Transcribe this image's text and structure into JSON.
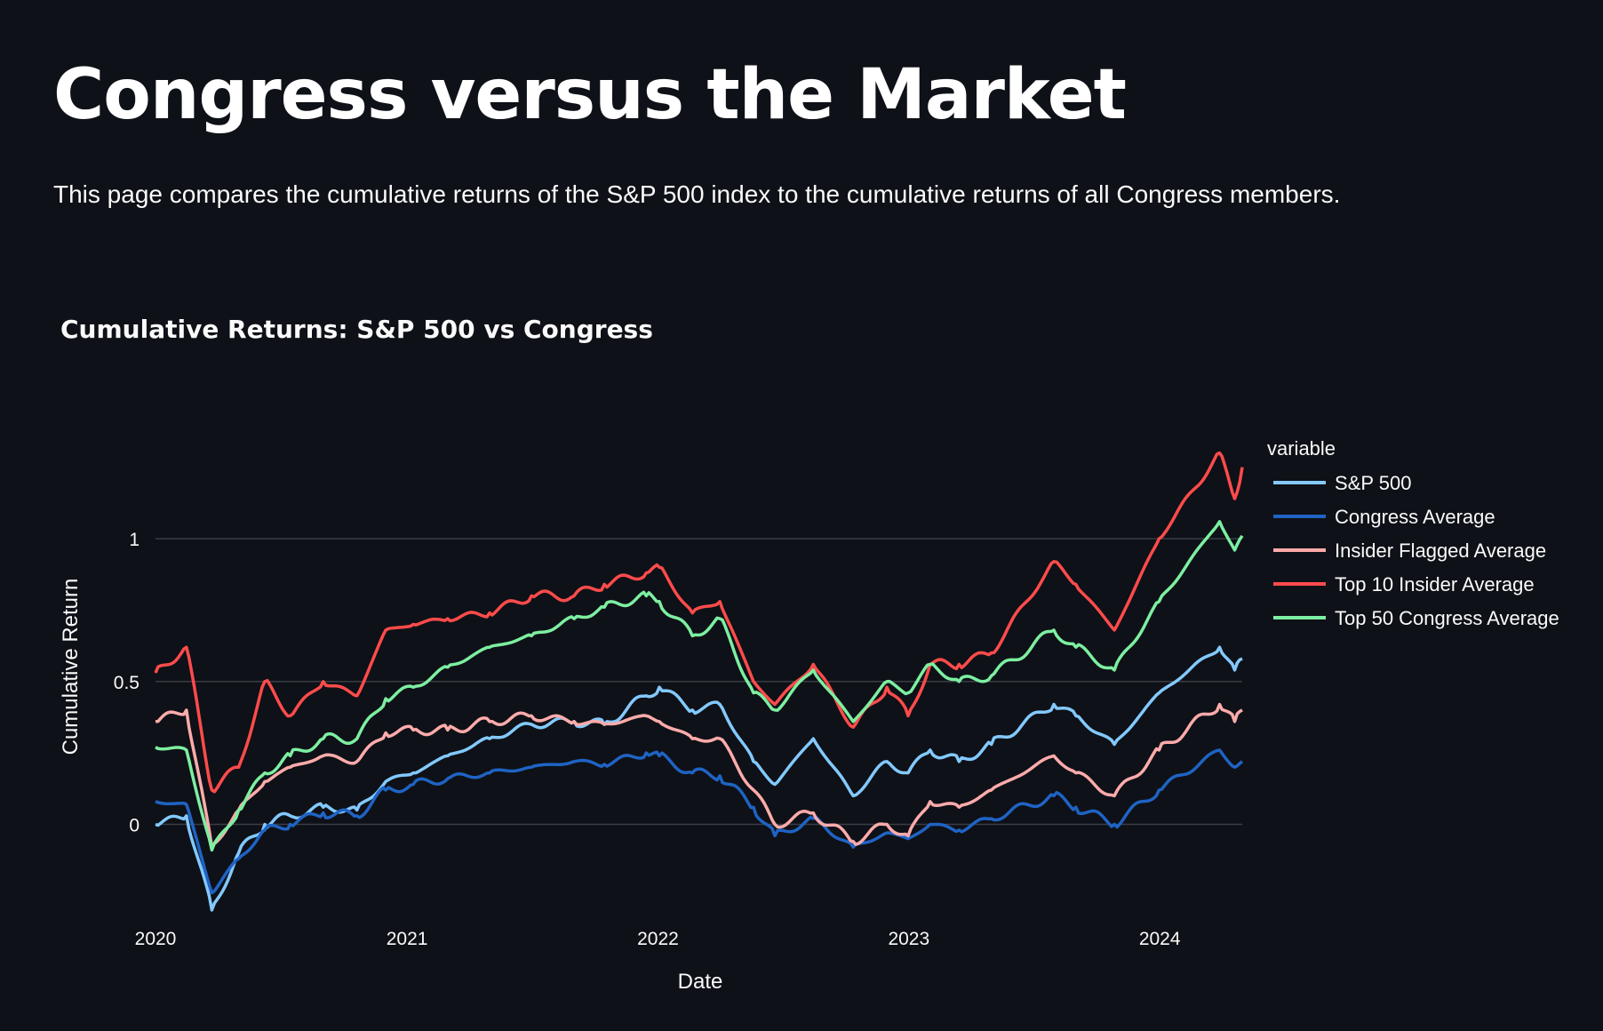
{
  "page": {
    "title": "Congress versus the Market",
    "description": "This page compares the cumulative returns of the S&P 500 index to the cumulative returns of all Congress members."
  },
  "colors": {
    "background": "#0e1117",
    "grid": "#3a3d44",
    "text": "#fafafa"
  },
  "chart_data": {
    "type": "line",
    "title": "Cumulative Returns: S&P 500 vs Congress",
    "xlabel": "Date",
    "ylabel": "Cumulative Return",
    "x_axis_type": "date",
    "xlim": [
      "2020-01-01",
      "2024-04-30"
    ],
    "ylim": [
      -0.35,
      1.33
    ],
    "x_ticks": [
      {
        "value": "2020-01-01",
        "label": "2020"
      },
      {
        "value": "2021-01-01",
        "label": "2021"
      },
      {
        "value": "2022-01-01",
        "label": "2022"
      },
      {
        "value": "2023-01-01",
        "label": "2023"
      },
      {
        "value": "2024-01-01",
        "label": "2024"
      }
    ],
    "y_ticks": [
      {
        "value": 0,
        "label": "0"
      },
      {
        "value": 0.5,
        "label": "0.5"
      },
      {
        "value": 1,
        "label": "1"
      }
    ],
    "grid": true,
    "legend": {
      "title": "variable",
      "position": "right"
    },
    "series": [
      {
        "name": "S&P 500",
        "color": "#83c9ff",
        "points": [
          [
            "2020-01-01",
            0.0
          ],
          [
            "2020-02-15",
            0.03
          ],
          [
            "2020-03-23",
            -0.3
          ],
          [
            "2020-05-01",
            -0.1
          ],
          [
            "2020-06-08",
            0.0
          ],
          [
            "2020-07-15",
            0.03
          ],
          [
            "2020-09-01",
            0.06
          ],
          [
            "2020-10-20",
            0.05
          ],
          [
            "2020-12-01",
            0.15
          ],
          [
            "2021-01-10",
            0.18
          ],
          [
            "2021-03-01",
            0.24
          ],
          [
            "2021-05-01",
            0.3
          ],
          [
            "2021-07-01",
            0.35
          ],
          [
            "2021-09-01",
            0.36
          ],
          [
            "2021-10-15",
            0.35
          ],
          [
            "2021-12-15",
            0.45
          ],
          [
            "2022-01-03",
            0.48
          ],
          [
            "2022-02-20",
            0.4
          ],
          [
            "2022-04-01",
            0.42
          ],
          [
            "2022-05-20",
            0.22
          ],
          [
            "2022-06-20",
            0.14
          ],
          [
            "2022-08-15",
            0.3
          ],
          [
            "2022-10-12",
            0.1
          ],
          [
            "2022-11-30",
            0.22
          ],
          [
            "2022-12-31",
            0.18
          ],
          [
            "2023-02-01",
            0.26
          ],
          [
            "2023-03-15",
            0.22
          ],
          [
            "2023-05-01",
            0.28
          ],
          [
            "2023-07-31",
            0.42
          ],
          [
            "2023-09-01",
            0.38
          ],
          [
            "2023-10-27",
            0.28
          ],
          [
            "2023-12-31",
            0.46
          ],
          [
            "2024-03-28",
            0.62
          ],
          [
            "2024-04-19",
            0.54
          ],
          [
            "2024-04-30",
            0.58
          ]
        ]
      },
      {
        "name": "Congress Average",
        "color": "#1f63c4",
        "points": [
          [
            "2020-01-01",
            0.08
          ],
          [
            "2020-02-15",
            0.07
          ],
          [
            "2020-03-23",
            -0.24
          ],
          [
            "2020-05-01",
            -0.12
          ],
          [
            "2020-06-08",
            -0.02
          ],
          [
            "2020-07-15",
            0.0
          ],
          [
            "2020-09-01",
            0.04
          ],
          [
            "2020-10-20",
            0.03
          ],
          [
            "2020-12-01",
            0.12
          ],
          [
            "2021-01-10",
            0.14
          ],
          [
            "2021-03-01",
            0.16
          ],
          [
            "2021-05-01",
            0.18
          ],
          [
            "2021-07-01",
            0.2
          ],
          [
            "2021-09-01",
            0.22
          ],
          [
            "2021-10-15",
            0.21
          ],
          [
            "2021-12-15",
            0.25
          ],
          [
            "2022-01-03",
            0.24
          ],
          [
            "2022-02-20",
            0.18
          ],
          [
            "2022-04-01",
            0.17
          ],
          [
            "2022-05-20",
            0.06
          ],
          [
            "2022-06-20",
            -0.04
          ],
          [
            "2022-08-15",
            0.02
          ],
          [
            "2022-10-12",
            -0.08
          ],
          [
            "2022-11-30",
            -0.03
          ],
          [
            "2022-12-31",
            -0.05
          ],
          [
            "2023-02-01",
            0.0
          ],
          [
            "2023-03-15",
            -0.02
          ],
          [
            "2023-05-01",
            0.02
          ],
          [
            "2023-07-31",
            0.1
          ],
          [
            "2023-09-01",
            0.06
          ],
          [
            "2023-10-27",
            0.0
          ],
          [
            "2023-12-31",
            0.12
          ],
          [
            "2024-03-28",
            0.26
          ],
          [
            "2024-04-19",
            0.2
          ],
          [
            "2024-04-30",
            0.22
          ]
        ]
      },
      {
        "name": "Insider Flagged Average",
        "color": "#ffabab",
        "points": [
          [
            "2020-01-01",
            0.36
          ],
          [
            "2020-02-15",
            0.4
          ],
          [
            "2020-03-23",
            -0.08
          ],
          [
            "2020-05-01",
            0.05
          ],
          [
            "2020-06-08",
            0.15
          ],
          [
            "2020-07-15",
            0.2
          ],
          [
            "2020-09-01",
            0.24
          ],
          [
            "2020-10-20",
            0.22
          ],
          [
            "2020-12-01",
            0.32
          ],
          [
            "2021-01-10",
            0.33
          ],
          [
            "2021-03-01",
            0.33
          ],
          [
            "2021-05-01",
            0.36
          ],
          [
            "2021-07-01",
            0.38
          ],
          [
            "2021-09-01",
            0.36
          ],
          [
            "2021-10-15",
            0.35
          ],
          [
            "2021-12-15",
            0.38
          ],
          [
            "2022-01-03",
            0.36
          ],
          [
            "2022-02-20",
            0.3
          ],
          [
            "2022-04-01",
            0.3
          ],
          [
            "2022-05-20",
            0.12
          ],
          [
            "2022-06-20",
            0.0
          ],
          [
            "2022-08-15",
            0.04
          ],
          [
            "2022-10-12",
            -0.06
          ],
          [
            "2022-11-30",
            0.0
          ],
          [
            "2022-12-31",
            -0.04
          ],
          [
            "2023-02-01",
            0.08
          ],
          [
            "2023-03-15",
            0.06
          ],
          [
            "2023-05-01",
            0.12
          ],
          [
            "2023-07-31",
            0.24
          ],
          [
            "2023-09-01",
            0.18
          ],
          [
            "2023-10-27",
            0.1
          ],
          [
            "2023-12-31",
            0.26
          ],
          [
            "2024-03-28",
            0.42
          ],
          [
            "2024-04-19",
            0.36
          ],
          [
            "2024-04-30",
            0.4
          ]
        ]
      },
      {
        "name": "Top 10 Insider Average",
        "color": "#ff4b4b",
        "points": [
          [
            "2020-01-01",
            0.53
          ],
          [
            "2020-02-15",
            0.62
          ],
          [
            "2020-03-23",
            0.12
          ],
          [
            "2020-05-01",
            0.2
          ],
          [
            "2020-06-08",
            0.5
          ],
          [
            "2020-07-15",
            0.38
          ],
          [
            "2020-09-01",
            0.5
          ],
          [
            "2020-10-20",
            0.45
          ],
          [
            "2020-12-01",
            0.68
          ],
          [
            "2021-01-10",
            0.7
          ],
          [
            "2021-03-01",
            0.72
          ],
          [
            "2021-05-01",
            0.74
          ],
          [
            "2021-07-01",
            0.8
          ],
          [
            "2021-09-01",
            0.8
          ],
          [
            "2021-10-15",
            0.84
          ],
          [
            "2021-12-15",
            0.88
          ],
          [
            "2022-01-03",
            0.9
          ],
          [
            "2022-02-20",
            0.74
          ],
          [
            "2022-04-01",
            0.78
          ],
          [
            "2022-05-20",
            0.5
          ],
          [
            "2022-06-20",
            0.42
          ],
          [
            "2022-08-15",
            0.56
          ],
          [
            "2022-10-12",
            0.34
          ],
          [
            "2022-11-30",
            0.48
          ],
          [
            "2022-12-31",
            0.38
          ],
          [
            "2023-02-01",
            0.56
          ],
          [
            "2023-03-15",
            0.56
          ],
          [
            "2023-05-01",
            0.6
          ],
          [
            "2023-07-31",
            0.92
          ],
          [
            "2023-09-01",
            0.84
          ],
          [
            "2023-10-27",
            0.68
          ],
          [
            "2023-12-31",
            1.0
          ],
          [
            "2024-03-28",
            1.3
          ],
          [
            "2024-04-19",
            1.14
          ],
          [
            "2024-04-30",
            1.25
          ]
        ]
      },
      {
        "name": "Top 50 Congress Average",
        "color": "#7defa1",
        "points": [
          [
            "2020-01-01",
            0.27
          ],
          [
            "2020-02-15",
            0.26
          ],
          [
            "2020-03-23",
            -0.09
          ],
          [
            "2020-05-01",
            0.05
          ],
          [
            "2020-06-08",
            0.18
          ],
          [
            "2020-07-15",
            0.24
          ],
          [
            "2020-09-01",
            0.3
          ],
          [
            "2020-10-20",
            0.3
          ],
          [
            "2020-12-01",
            0.44
          ],
          [
            "2021-01-10",
            0.48
          ],
          [
            "2021-03-01",
            0.55
          ],
          [
            "2021-05-01",
            0.62
          ],
          [
            "2021-07-01",
            0.66
          ],
          [
            "2021-09-01",
            0.72
          ],
          [
            "2021-10-15",
            0.76
          ],
          [
            "2021-12-15",
            0.8
          ],
          [
            "2022-01-03",
            0.78
          ],
          [
            "2022-02-20",
            0.66
          ],
          [
            "2022-04-01",
            0.72
          ],
          [
            "2022-05-20",
            0.46
          ],
          [
            "2022-06-20",
            0.4
          ],
          [
            "2022-08-15",
            0.54
          ],
          [
            "2022-10-12",
            0.36
          ],
          [
            "2022-11-30",
            0.5
          ],
          [
            "2022-12-31",
            0.46
          ],
          [
            "2023-02-01",
            0.56
          ],
          [
            "2023-03-15",
            0.5
          ],
          [
            "2023-05-01",
            0.52
          ],
          [
            "2023-07-31",
            0.68
          ],
          [
            "2023-09-01",
            0.62
          ],
          [
            "2023-10-27",
            0.54
          ],
          [
            "2023-12-31",
            0.78
          ],
          [
            "2024-03-28",
            1.06
          ],
          [
            "2024-04-19",
            0.96
          ],
          [
            "2024-04-30",
            1.01
          ]
        ]
      }
    ]
  }
}
